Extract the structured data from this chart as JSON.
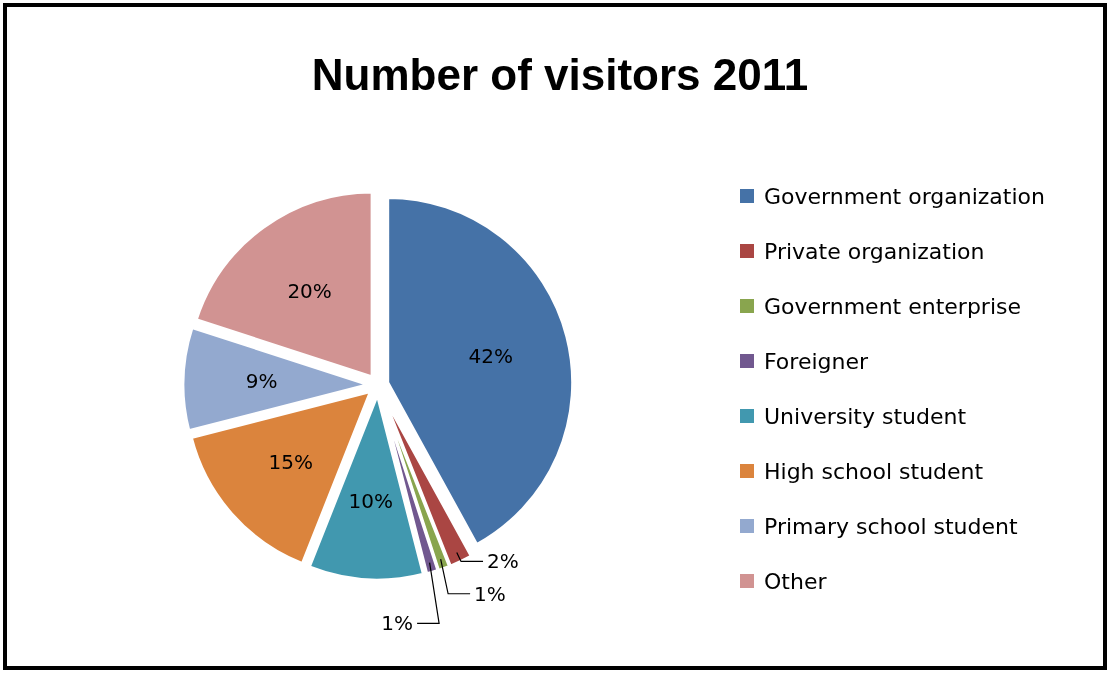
{
  "chart_data": {
    "type": "pie",
    "title": "Number of visitors 2011",
    "categories": [
      "Government organization",
      "Private organization",
      "Government enterprise",
      "Foreigner",
      "University student",
      "High school student",
      "Primary school student",
      "Other"
    ],
    "values": [
      42,
      2,
      1,
      1,
      10,
      15,
      9,
      20
    ],
    "value_labels": [
      "42%",
      "2%",
      "1%",
      "1%",
      "10%",
      "15%",
      "9%",
      "20%"
    ],
    "colors": [
      "#4572a7",
      "#aa4643",
      "#89a54e",
      "#71588f",
      "#4198af",
      "#db843d",
      "#93a9cf",
      "#d19392"
    ],
    "legend": "right"
  }
}
